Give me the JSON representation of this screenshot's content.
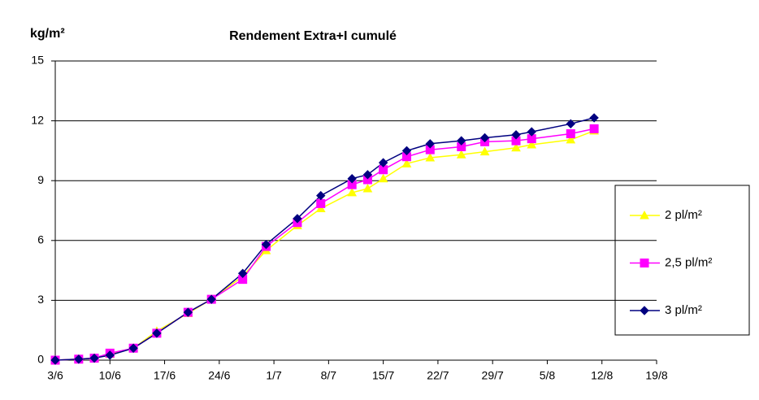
{
  "chart_data": {
    "type": "line",
    "title": "Rendement Extra+I cumulé",
    "y_label": "kg/m²",
    "x": [
      "3/6",
      "6/6",
      "8/6",
      "10/6",
      "13/6",
      "16/6",
      "20/6",
      "23/6",
      "27/6",
      "30/6",
      "4/7",
      "7/7",
      "11/7",
      "13/7",
      "15/7",
      "18/7",
      "21/7",
      "25/7",
      "28/7",
      "1/8",
      "3/8",
      "8/8",
      "11/8"
    ],
    "series": [
      {
        "name": "2 pl/m²",
        "color": "#ffff00",
        "marker": "triangle",
        "values": [
          0,
          0.05,
          0.1,
          0.3,
          0.6,
          1.45,
          2.35,
          3.05,
          4.2,
          5.5,
          6.75,
          7.6,
          8.4,
          8.6,
          9.1,
          9.85,
          10.15,
          10.3,
          10.45,
          10.65,
          10.8,
          11.05,
          11.5
        ]
      },
      {
        "name": "2,5 pl/m²",
        "color": "#ff00ff",
        "marker": "square",
        "values": [
          0,
          0.05,
          0.1,
          0.35,
          0.6,
          1.35,
          2.4,
          3.05,
          4.05,
          5.7,
          6.9,
          7.85,
          8.8,
          9.05,
          9.55,
          10.2,
          10.55,
          10.7,
          10.95,
          11.0,
          11.1,
          11.35,
          11.6
        ]
      },
      {
        "name": "3 pl/m²",
        "color": "#000080",
        "marker": "diamond",
        "values": [
          0,
          0.05,
          0.1,
          0.25,
          0.6,
          1.35,
          2.4,
          3.05,
          4.35,
          5.8,
          7.1,
          8.25,
          9.1,
          9.3,
          9.9,
          10.5,
          10.85,
          11.0,
          11.15,
          11.3,
          11.45,
          11.85,
          12.15
        ]
      }
    ],
    "xlim": [
      "3/6",
      "19/8"
    ],
    "xticks": [
      "3/6",
      "10/6",
      "17/6",
      "24/6",
      "1/7",
      "8/7",
      "15/7",
      "22/7",
      "29/7",
      "5/8",
      "12/8",
      "19/8"
    ],
    "ylim": [
      0,
      15
    ],
    "yticks": [
      0,
      3,
      6,
      9,
      12,
      15
    ],
    "grid": true,
    "legend": "right"
  }
}
